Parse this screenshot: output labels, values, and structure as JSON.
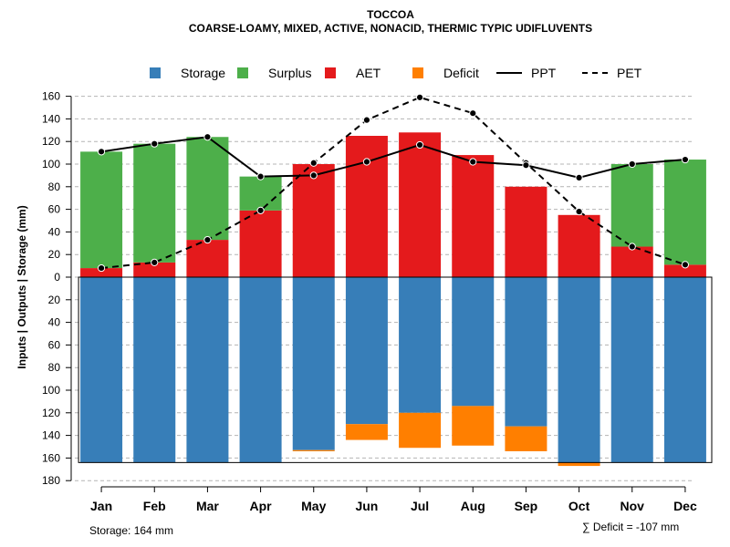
{
  "chart_data": {
    "type": "bar",
    "title": "TOCCOA",
    "subtitle": "COARSE-LOAMY, MIXED, ACTIVE, NONACID, THERMIC TYPIC UDIFLUVENTS",
    "ylabel": "Inputs | Outputs | Storage    (mm)",
    "xlabel": "",
    "categories": [
      "Jan",
      "Feb",
      "Mar",
      "Apr",
      "May",
      "Jun",
      "Jul",
      "Aug",
      "Sep",
      "Oct",
      "Nov",
      "Dec"
    ],
    "ylim": [
      -180,
      160
    ],
    "yticks": [
      160,
      140,
      120,
      100,
      80,
      60,
      40,
      20,
      0,
      -20,
      -40,
      -60,
      -80,
      -100,
      -120,
      -140,
      -160,
      -180
    ],
    "ytick_labels": [
      "160",
      "140",
      "120",
      "100",
      "80",
      "60",
      "40",
      "20",
      "0",
      "20",
      "40",
      "60",
      "80",
      "100",
      "120",
      "140",
      "160",
      "180"
    ],
    "grid": true,
    "legend_position": "top",
    "legend": [
      {
        "label": "Storage",
        "kind": "box",
        "color": "#377eb8"
      },
      {
        "label": "Surplus",
        "kind": "box",
        "color": "#4daf4a"
      },
      {
        "label": "AET",
        "kind": "box",
        "color": "#e41a1c"
      },
      {
        "label": "Deficit",
        "kind": "box",
        "color": "#ff7f00"
      },
      {
        "label": "PPT",
        "kind": "solid-line",
        "color": "#000000"
      },
      {
        "label": "PET",
        "kind": "dashed-line",
        "color": "#000000"
      }
    ],
    "series": [
      {
        "name": "AET",
        "color": "#e41a1c",
        "values": [
          8,
          13,
          33,
          59,
          100,
          125,
          128,
          108,
          80,
          55,
          27,
          11
        ]
      },
      {
        "name": "Surplus",
        "color": "#4daf4a",
        "values": [
          103,
          105,
          91,
          30,
          0,
          0,
          0,
          0,
          0,
          0,
          73,
          93
        ]
      },
      {
        "name": "Storage",
        "color": "#377eb8",
        "values": [
          164,
          164,
          164,
          164,
          153,
          130,
          120,
          114,
          132,
          164,
          164,
          164
        ]
      },
      {
        "name": "Deficit",
        "color": "#ff7f00",
        "values": [
          0,
          0,
          0,
          0,
          1,
          14,
          31,
          35,
          22,
          3,
          0,
          0
        ]
      },
      {
        "name": "PPT",
        "color": "#000000",
        "values": [
          111,
          118,
          124,
          89,
          90,
          102,
          117,
          102,
          99,
          88,
          100,
          104
        ]
      },
      {
        "name": "PET",
        "color": "#000000",
        "values": [
          8,
          13,
          33,
          59,
          101,
          139,
          159,
          145,
          101,
          58,
          27,
          11
        ]
      }
    ],
    "storage_capacity": 164,
    "annotations": {
      "storage_note": "Storage: 164 mm",
      "deficit_note": "∑ Deficit = -107 mm"
    }
  }
}
